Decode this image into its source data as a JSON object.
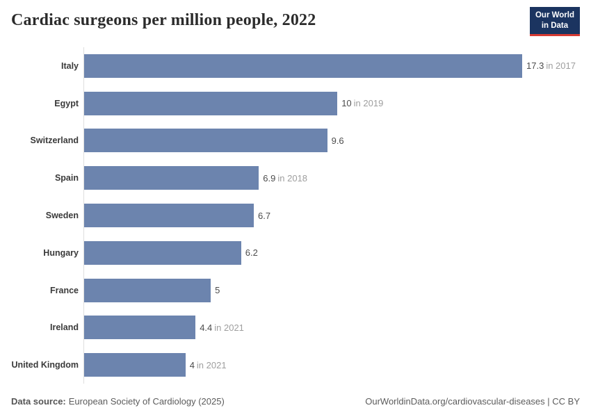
{
  "header": {
    "title": "Cardiac surgeons per million people, 2022",
    "logo": {
      "line1": "Our World",
      "line2": "in Data"
    }
  },
  "chart_data": {
    "type": "bar",
    "orientation": "horizontal",
    "title": "Cardiac surgeons per million people, 2022",
    "xlim": [
      0,
      17.3
    ],
    "grid": false,
    "legend": "none",
    "bar_color": "#6c84ae",
    "categories": [
      "Italy",
      "Egypt",
      "Switzerland",
      "Spain",
      "Sweden",
      "Hungary",
      "France",
      "Ireland",
      "United Kingdom"
    ],
    "values": [
      17.3,
      10,
      9.6,
      6.9,
      6.7,
      6.2,
      5,
      4.4,
      4
    ],
    "rows": [
      {
        "category": "Italy",
        "value": 17.3,
        "value_label": "17.3",
        "year_note": "in 2017"
      },
      {
        "category": "Egypt",
        "value": 10,
        "value_label": "10",
        "year_note": "in 2019"
      },
      {
        "category": "Switzerland",
        "value": 9.6,
        "value_label": "9.6",
        "year_note": ""
      },
      {
        "category": "Spain",
        "value": 6.9,
        "value_label": "6.9",
        "year_note": "in 2018"
      },
      {
        "category": "Sweden",
        "value": 6.7,
        "value_label": "6.7",
        "year_note": ""
      },
      {
        "category": "Hungary",
        "value": 6.2,
        "value_label": "6.2",
        "year_note": ""
      },
      {
        "category": "France",
        "value": 5,
        "value_label": "5",
        "year_note": ""
      },
      {
        "category": "Ireland",
        "value": 4.4,
        "value_label": "4.4",
        "year_note": "in 2021"
      },
      {
        "category": "United Kingdom",
        "value": 4,
        "value_label": "4",
        "year_note": "in 2021"
      }
    ]
  },
  "footer": {
    "source_label": "Data source:",
    "source_text": "European Society of Cardiology (2025)",
    "link_text": "OurWorldinData.org/cardiovascular-diseases | CC BY"
  },
  "colors": {
    "bar": "#6c84ae",
    "logo_bg": "#1b3460",
    "logo_accent": "#d73a33",
    "axis_line": "#dedede",
    "value_text": "#4c4c4c",
    "year_text": "#9e9e9e"
  }
}
